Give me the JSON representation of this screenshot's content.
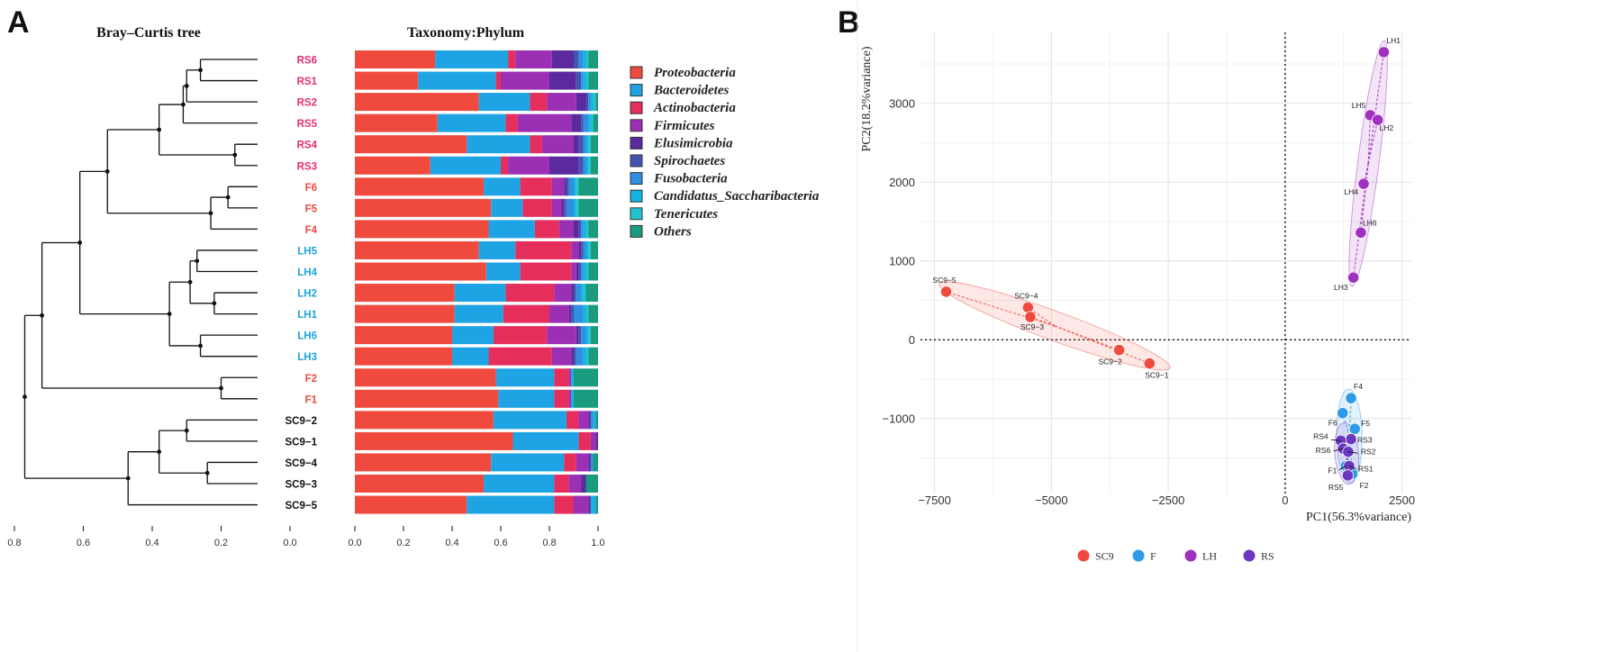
{
  "panel_labels": {
    "left": "A",
    "right": "B"
  },
  "chart_data": [
    {
      "type": "dendrogram",
      "title": "Bray–Curtis  tree",
      "xlim": [
        0.8,
        0.0
      ],
      "ticks": [
        "0.8",
        "0.6",
        "0.4",
        "0.2",
        "0.0"
      ],
      "tick_values": [
        0.8,
        0.6,
        0.4,
        0.2,
        0.0
      ],
      "leaves": [
        "RS6",
        "RS1",
        "RS2",
        "RS5",
        "RS4",
        "RS3",
        "F6",
        "F5",
        "F4",
        "LH5",
        "LH4",
        "LH2",
        "LH1",
        "LH6",
        "LH3",
        "F2",
        "F1",
        "SC9−2",
        "SC9−1",
        "SC9−4",
        "SC9−3",
        "SC9−5"
      ],
      "leaf_groups": [
        "RS",
        "RS",
        "RS",
        "RS",
        "RS",
        "RS",
        "F",
        "F",
        "F",
        "LH",
        "LH",
        "LH",
        "LH",
        "LH",
        "LH",
        "F",
        "F",
        "SC9",
        "SC9",
        "SC9",
        "SC9",
        "SC9"
      ],
      "group_colors": {
        "RS": "#e62e73",
        "F": "#f04a3e",
        "LH": "#1ea4dc",
        "SC9": "#111111"
      },
      "merges": [
        {
          "a": "RS6",
          "b": "RS1",
          "h": 0.26
        },
        {
          "a": "m0",
          "b": "RS2",
          "h": 0.3
        },
        {
          "a": "m1",
          "b": "RS5",
          "h": 0.31
        },
        {
          "a": "RS4",
          "b": "RS3",
          "h": 0.16
        },
        {
          "a": "m2",
          "b": "m3",
          "h": 0.38
        },
        {
          "a": "F6",
          "b": "F5",
          "h": 0.18
        },
        {
          "a": "m5",
          "b": "F4",
          "h": 0.23
        },
        {
          "a": "m4",
          "b": "m6",
          "h": 0.53
        },
        {
          "a": "LH5",
          "b": "LH4",
          "h": 0.27
        },
        {
          "a": "LH2",
          "b": "LH1",
          "h": 0.22
        },
        {
          "a": "m8",
          "b": "m9",
          "h": 0.29
        },
        {
          "a": "LH6",
          "b": "LH3",
          "h": 0.26
        },
        {
          "a": "m10",
          "b": "m11",
          "h": 0.35
        },
        {
          "a": "m7",
          "b": "m12",
          "h": 0.61
        },
        {
          "a": "F2",
          "b": "F1",
          "h": 0.2
        },
        {
          "a": "m13",
          "b": "m14",
          "h": 0.72
        },
        {
          "a": "SC9−2",
          "b": "SC9−1",
          "h": 0.3
        },
        {
          "a": "SC9−4",
          "b": "SC9−3",
          "h": 0.24
        },
        {
          "a": "m16",
          "b": "m17",
          "h": 0.38
        },
        {
          "a": "m18",
          "b": "SC9−5",
          "h": 0.47
        },
        {
          "a": "m15",
          "b": "m19",
          "h": 0.77
        }
      ]
    },
    {
      "type": "bar",
      "stacked": true,
      "orientation": "horizontal",
      "title": "Taxonomy:Phylum",
      "xlim": [
        0.0,
        1.0
      ],
      "ticks": [
        "0.0",
        "0.2",
        "0.4",
        "0.6",
        "0.8",
        "1.0"
      ],
      "tick_values": [
        0.0,
        0.2,
        0.4,
        0.6,
        0.8,
        1.0
      ],
      "categories": [
        "RS6",
        "RS1",
        "RS2",
        "RS5",
        "RS4",
        "RS3",
        "F6",
        "F5",
        "F4",
        "LH5",
        "LH4",
        "LH2",
        "LH1",
        "LH6",
        "LH3",
        "F2",
        "F1",
        "SC9−2",
        "SC9−1",
        "SC9−4",
        "SC9−3",
        "SC9−5"
      ],
      "series": [
        {
          "name": "Proteobacteria",
          "color": "#f04a3e",
          "values": [
            0.33,
            0.26,
            0.51,
            0.34,
            0.46,
            0.31,
            0.53,
            0.56,
            0.55,
            0.51,
            0.54,
            0.41,
            0.41,
            0.4,
            0.4,
            0.58,
            0.59,
            0.57,
            0.65,
            0.56,
            0.53,
            0.46
          ]
        },
        {
          "name": "Bacteroidetes",
          "color": "#1ea4e4",
          "values": [
            0.3,
            0.32,
            0.21,
            0.28,
            0.26,
            0.29,
            0.15,
            0.13,
            0.19,
            0.15,
            0.14,
            0.21,
            0.2,
            0.17,
            0.15,
            0.24,
            0.23,
            0.3,
            0.27,
            0.3,
            0.29,
            0.36
          ]
        },
        {
          "name": "Actinobacteria",
          "color": "#e62e5c",
          "values": [
            0.03,
            0.02,
            0.07,
            0.05,
            0.05,
            0.03,
            0.13,
            0.12,
            0.1,
            0.23,
            0.21,
            0.2,
            0.19,
            0.22,
            0.26,
            0.06,
            0.06,
            0.05,
            0.05,
            0.05,
            0.06,
            0.08
          ]
        },
        {
          "name": "Firmicutes",
          "color": "#9b30b5",
          "values": [
            0.15,
            0.2,
            0.12,
            0.22,
            0.13,
            0.17,
            0.05,
            0.04,
            0.06,
            0.03,
            0.02,
            0.07,
            0.08,
            0.12,
            0.08,
            0.01,
            0.01,
            0.04,
            0.02,
            0.05,
            0.05,
            0.06
          ]
        },
        {
          "name": "Elusimicrobia",
          "color": "#5b2a9e",
          "values": [
            0.09,
            0.11,
            0.04,
            0.04,
            0.02,
            0.12,
            0.01,
            0.01,
            0.02,
            0.01,
            0.01,
            0.01,
            0.01,
            0.01,
            0.01,
            0.0,
            0.0,
            0.01,
            0.01,
            0.01,
            0.02,
            0.01
          ]
        },
        {
          "name": "Spirochaetes",
          "color": "#4353b0",
          "values": [
            0.02,
            0.02,
            0.01,
            0.01,
            0.02,
            0.02,
            0.01,
            0.01,
            0.01,
            0.01,
            0.01,
            0.01,
            0.01,
            0.01,
            0.01,
            0.0,
            0.0,
            0.0,
            0.0,
            0.0,
            0.0,
            0.0
          ]
        },
        {
          "name": "Fusobacteria",
          "color": "#2f8fe0",
          "values": [
            0.02,
            0.01,
            0.01,
            0.02,
            0.01,
            0.01,
            0.02,
            0.03,
            0.01,
            0.01,
            0.01,
            0.02,
            0.04,
            0.02,
            0.03,
            0.0,
            0.0,
            0.01,
            0.0,
            0.01,
            0.0,
            0.0
          ]
        },
        {
          "name": "Candidatus_Saccharibacteria",
          "color": "#12b2e3",
          "values": [
            0.01,
            0.01,
            0.01,
            0.01,
            0.01,
            0.01,
            0.01,
            0.01,
            0.01,
            0.01,
            0.01,
            0.01,
            0.01,
            0.01,
            0.01,
            0.01,
            0.01,
            0.01,
            0.0,
            0.0,
            0.0,
            0.02
          ]
        },
        {
          "name": "Tenericutes",
          "color": "#22c3cf",
          "values": [
            0.01,
            0.01,
            0.01,
            0.01,
            0.01,
            0.01,
            0.01,
            0.01,
            0.01,
            0.01,
            0.01,
            0.01,
            0.01,
            0.01,
            0.01,
            0.0,
            0.0,
            0.0,
            0.0,
            0.0,
            0.0,
            0.0
          ]
        },
        {
          "name": "Others",
          "color": "#1a9a7f",
          "values": [
            0.04,
            0.04,
            0.01,
            0.02,
            0.03,
            0.03,
            0.08,
            0.08,
            0.04,
            0.03,
            0.04,
            0.05,
            0.04,
            0.03,
            0.04,
            0.1,
            0.1,
            0.01,
            0.0,
            0.02,
            0.05,
            0.01
          ]
        }
      ],
      "legend_position": "right"
    },
    {
      "type": "scatter",
      "title": "",
      "xlabel": "PC1(56.3%variance)",
      "ylabel": "PC2(18.2%variance)",
      "xlim": [
        -7800,
        2700
      ],
      "ylim": [
        -1950,
        3900
      ],
      "x_ticks": [
        "−7500",
        "−5000",
        "−2500",
        "0",
        "2500"
      ],
      "x_tick_values": [
        -7500,
        -5000,
        -2500,
        0,
        2500
      ],
      "y_ticks": [
        "−1000",
        "0",
        "1000",
        "2000",
        "3000"
      ],
      "y_tick_values": [
        -1000,
        0,
        1000,
        2000,
        3000
      ],
      "grid": true,
      "zero_lines": true,
      "groups": [
        {
          "name": "SC9",
          "color": "#f04a3e"
        },
        {
          "name": "F",
          "color": "#2f9ae8"
        },
        {
          "name": "LH",
          "color": "#a030c0"
        },
        {
          "name": "RS",
          "color": "#6a38c0"
        }
      ],
      "points": [
        {
          "label": "SC9−5",
          "group": "SC9",
          "x": -7250,
          "y": 610
        },
        {
          "label": "SC9−4",
          "group": "SC9",
          "x": -5500,
          "y": 410
        },
        {
          "label": "SC9−3",
          "group": "SC9",
          "x": -5450,
          "y": 290
        },
        {
          "label": "SC9−2",
          "group": "SC9",
          "x": -3550,
          "y": -130
        },
        {
          "label": "SC9−1",
          "group": "SC9",
          "x": -2900,
          "y": -300
        },
        {
          "label": "LH1",
          "group": "LH",
          "x": 2110,
          "y": 3650
        },
        {
          "label": "LH5",
          "group": "LH",
          "x": 1820,
          "y": 2850
        },
        {
          "label": "LH2",
          "group": "LH",
          "x": 1980,
          "y": 2790
        },
        {
          "label": "LH4",
          "group": "LH",
          "x": 1680,
          "y": 1980
        },
        {
          "label": "LH6",
          "group": "LH",
          "x": 1620,
          "y": 1360
        },
        {
          "label": "LH3",
          "group": "LH",
          "x": 1460,
          "y": 790
        },
        {
          "label": "F4",
          "group": "F",
          "x": 1410,
          "y": -740
        },
        {
          "label": "F6",
          "group": "F",
          "x": 1230,
          "y": -930
        },
        {
          "label": "F5",
          "group": "F",
          "x": 1490,
          "y": -1130
        },
        {
          "label": "F1",
          "group": "F",
          "x": 1300,
          "y": -1600
        },
        {
          "label": "F2",
          "group": "F",
          "x": 1440,
          "y": -1700
        },
        {
          "label": "RS3",
          "group": "RS",
          "x": 1410,
          "y": -1260
        },
        {
          "label": "RS4",
          "group": "RS",
          "x": 1190,
          "y": -1280
        },
        {
          "label": "RS6",
          "group": "RS",
          "x": 1240,
          "y": -1380
        },
        {
          "label": "RS2",
          "group": "RS",
          "x": 1350,
          "y": -1420
        },
        {
          "label": "RS1",
          "group": "RS",
          "x": 1370,
          "y": -1600
        },
        {
          "label": "RS5",
          "group": "RS",
          "x": 1340,
          "y": -1720
        }
      ],
      "legend_position": "bottom"
    }
  ]
}
